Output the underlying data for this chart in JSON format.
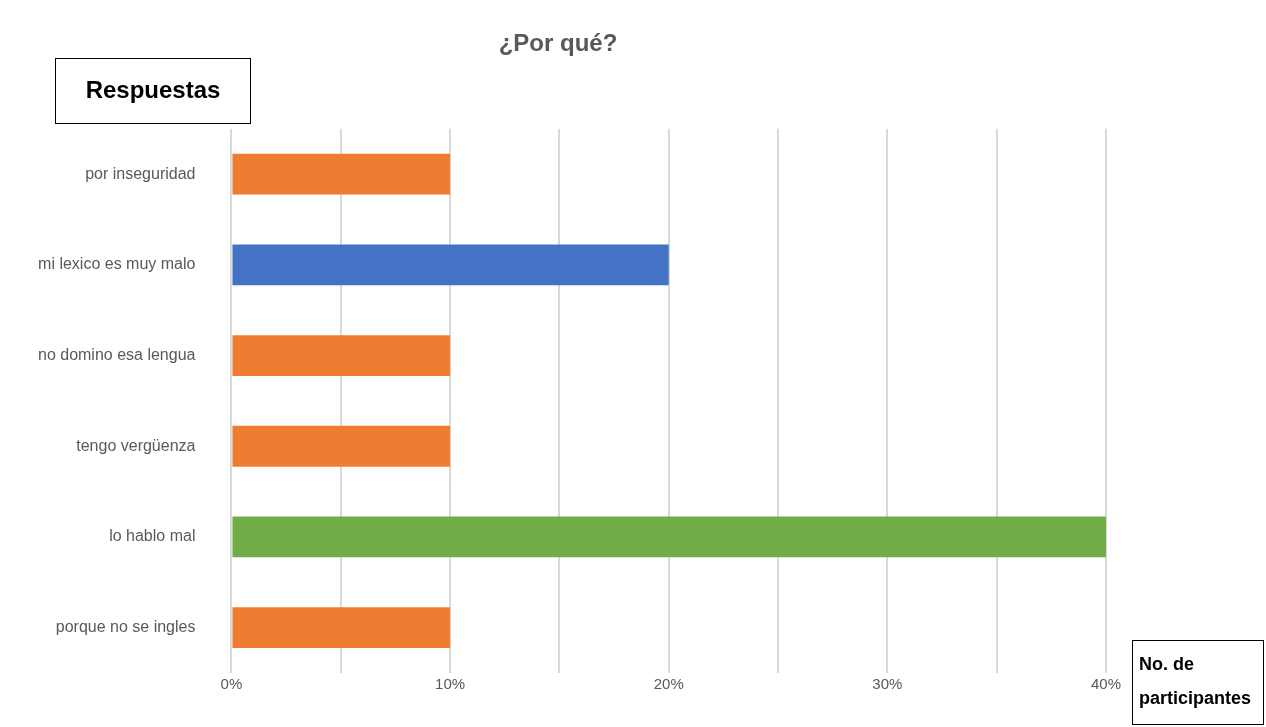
{
  "chart_data": {
    "type": "bar",
    "orientation": "horizontal",
    "title": "¿Por qué?",
    "xlabel": "No. de participantes",
    "ylabel": "Respuestas",
    "categories": [
      "por inseguridad",
      "mi lexico es muy malo",
      "no domino esa lengua",
      "tengo vergüenza",
      "lo hablo mal",
      "porque no se ingles"
    ],
    "values": [
      10,
      20,
      10,
      10,
      40,
      10
    ],
    "colors": [
      "#ed7d31",
      "#4472c4",
      "#ed7d31",
      "#ed7d31",
      "#70ad47",
      "#ed7d31"
    ],
    "xlim": [
      0,
      40
    ],
    "xticks": [
      {
        "value": 0,
        "label": "0%"
      },
      {
        "value": 5,
        "label": null
      },
      {
        "value": 10,
        "label": "10%"
      },
      {
        "value": 15,
        "label": null
      },
      {
        "value": 20,
        "label": "20%"
      },
      {
        "value": 25,
        "label": null
      },
      {
        "value": 30,
        "label": "30%"
      },
      {
        "value": 35,
        "label": null
      },
      {
        "value": 40,
        "label": "40%"
      }
    ],
    "grid": "x",
    "legend": false
  }
}
